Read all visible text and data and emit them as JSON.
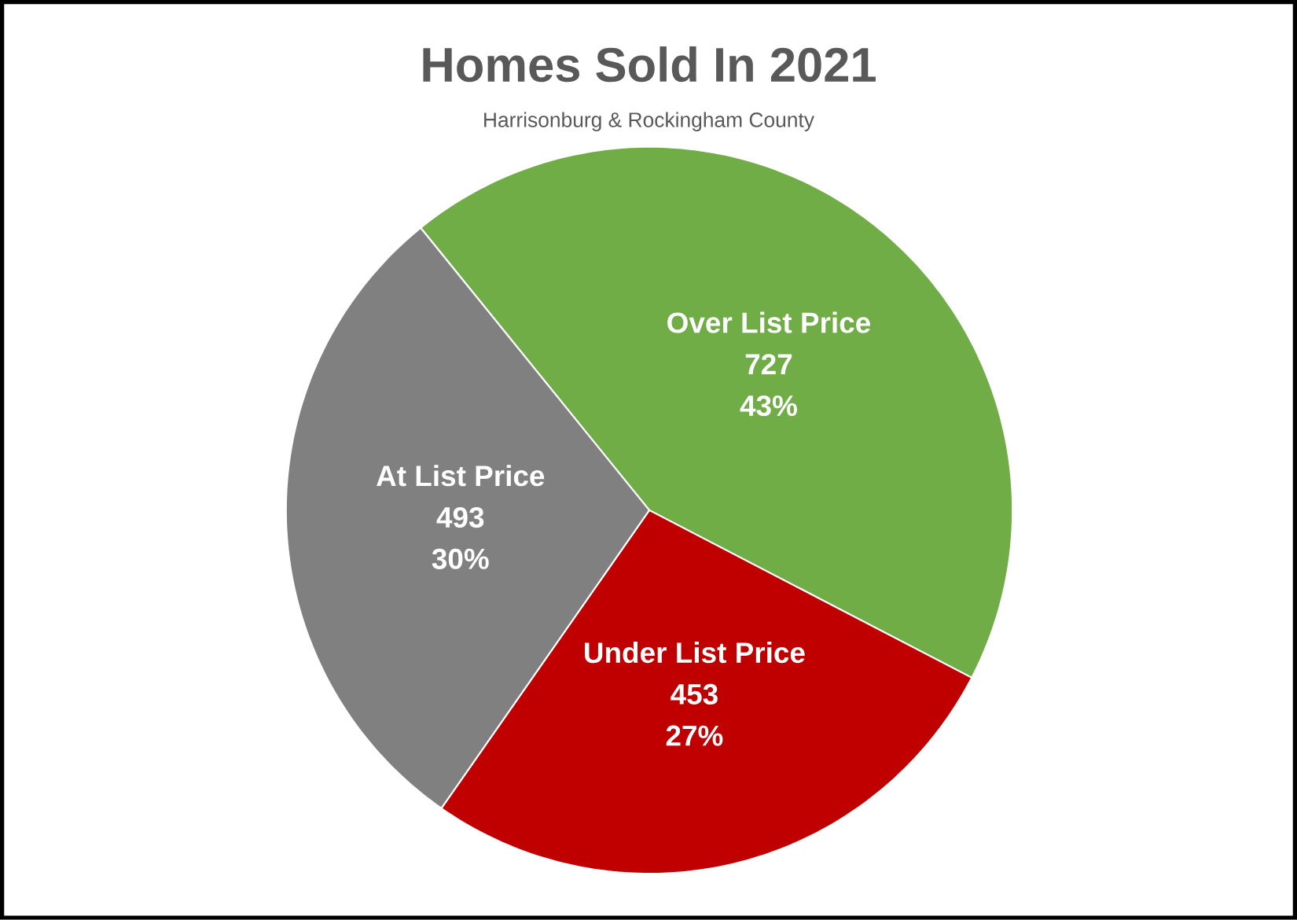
{
  "chart_data": {
    "type": "pie",
    "title": "Homes Sold In 2021",
    "subtitle": "Harrisonburg & Rockingham County",
    "categories": [
      "Over List Price",
      "Under List Price",
      "At List Price"
    ],
    "values": [
      727,
      453,
      493
    ],
    "colors": [
      "#70ad47",
      "#c00000",
      "#808080"
    ],
    "data_labels": true,
    "annotations": [
      "43%",
      "27%",
      "30%"
    ]
  }
}
